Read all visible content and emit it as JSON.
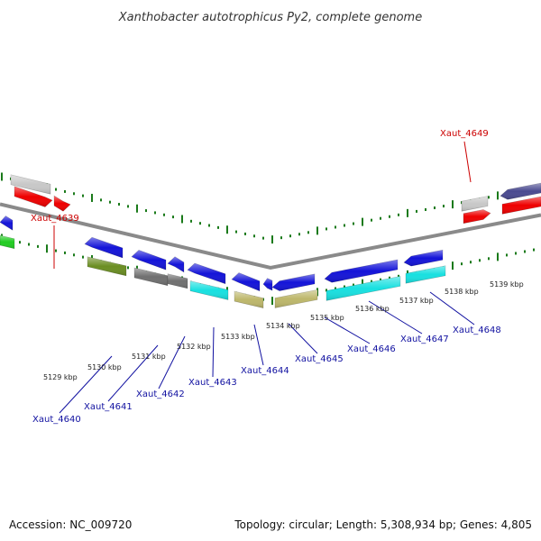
{
  "title": "Xanthobacter autotrophicus Py2, complete genome",
  "footer": {
    "accession": "Accession: NC_009720",
    "topology": "Topology: circular; Length: 5,308,934 bp; Genes: 4,805"
  },
  "kbp_ticks": [
    "5129 kbp",
    "5130 kbp",
    "5131 kbp",
    "5132 kbp",
    "5133 kbp",
    "5134 kbp",
    "5135 kbp",
    "5136 kbp",
    "5137 kbp",
    "5138 kbp",
    "5139 kbp"
  ],
  "labels_top": [
    {
      "text": "Xaut_4639",
      "color": "#cc0000"
    },
    {
      "text": "Xaut_4649",
      "color": "#cc0000"
    }
  ],
  "labels_bottom": [
    {
      "text": "Xaut_4640",
      "color": "#1010a0"
    },
    {
      "text": "Xaut_4641",
      "color": "#1010a0"
    },
    {
      "text": "Xaut_4642",
      "color": "#1010a0"
    },
    {
      "text": "Xaut_4643",
      "color": "#1010a0"
    },
    {
      "text": "Xaut_4644",
      "color": "#1010a0"
    },
    {
      "text": "Xaut_4645",
      "color": "#1010a0"
    },
    {
      "text": "Xaut_4646",
      "color": "#1010a0"
    },
    {
      "text": "Xaut_4647",
      "color": "#1010a0"
    },
    {
      "text": "Xaut_4648",
      "color": "#1010a0"
    }
  ],
  "colors": {
    "backbone": "#8a8a8a",
    "tick_green": "#1a7a1a",
    "gene_blue": "#1414d8",
    "gene_red": "#ee0000",
    "gene_gray": "#c8c8c8",
    "gene_dark_gray": "#707070",
    "gene_olive": "#6b8e23",
    "gene_cyan": "#18e0e0",
    "gene_khaki": "#bdb76b",
    "gene_slate": "#4a4a90",
    "gene_green": "#22cc22"
  }
}
